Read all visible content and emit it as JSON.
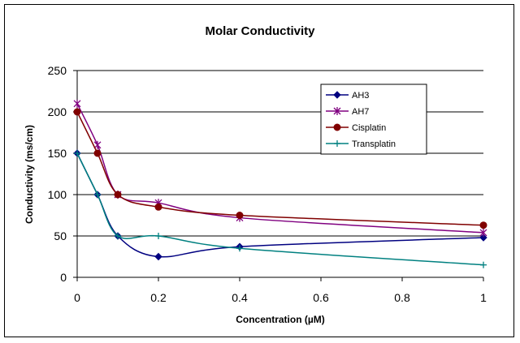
{
  "chart_data": {
    "type": "line",
    "title": "Molar Conductivity",
    "xlabel": "Concentration (µM)",
    "ylabel": "Conductivity (ms/cm)",
    "xlim": [
      0,
      1
    ],
    "ylim": [
      0,
      250
    ],
    "xticks": [
      "0",
      "0.2",
      "0.4",
      "0.6",
      "0.8",
      "1"
    ],
    "yticks": [
      "0",
      "50",
      "100",
      "150",
      "200",
      "250"
    ],
    "grid": "horizontal",
    "legend_position": "top-right",
    "series": [
      {
        "name": "AH3",
        "color": "#000080",
        "marker": "diamond",
        "x": [
          0,
          0.05,
          0.1,
          0.2,
          0.4,
          1
        ],
        "y": [
          150,
          100,
          50,
          25,
          37,
          48
        ]
      },
      {
        "name": "AH7",
        "color": "#800080",
        "marker": "star",
        "x": [
          0,
          0.05,
          0.1,
          0.2,
          0.4,
          1
        ],
        "y": [
          210,
          160,
          100,
          90,
          72,
          54
        ]
      },
      {
        "name": "Cisplatin",
        "color": "#800000",
        "marker": "circle",
        "x": [
          0,
          0.05,
          0.1,
          0.2,
          0.4,
          1
        ],
        "y": [
          200,
          150,
          100,
          85,
          75,
          63
        ]
      },
      {
        "name": "Transplatin",
        "color": "#008080",
        "marker": "plus",
        "x": [
          0,
          0.05,
          0.1,
          0.2,
          0.4,
          1
        ],
        "y": [
          150,
          100,
          50,
          50,
          35,
          15
        ]
      }
    ]
  }
}
